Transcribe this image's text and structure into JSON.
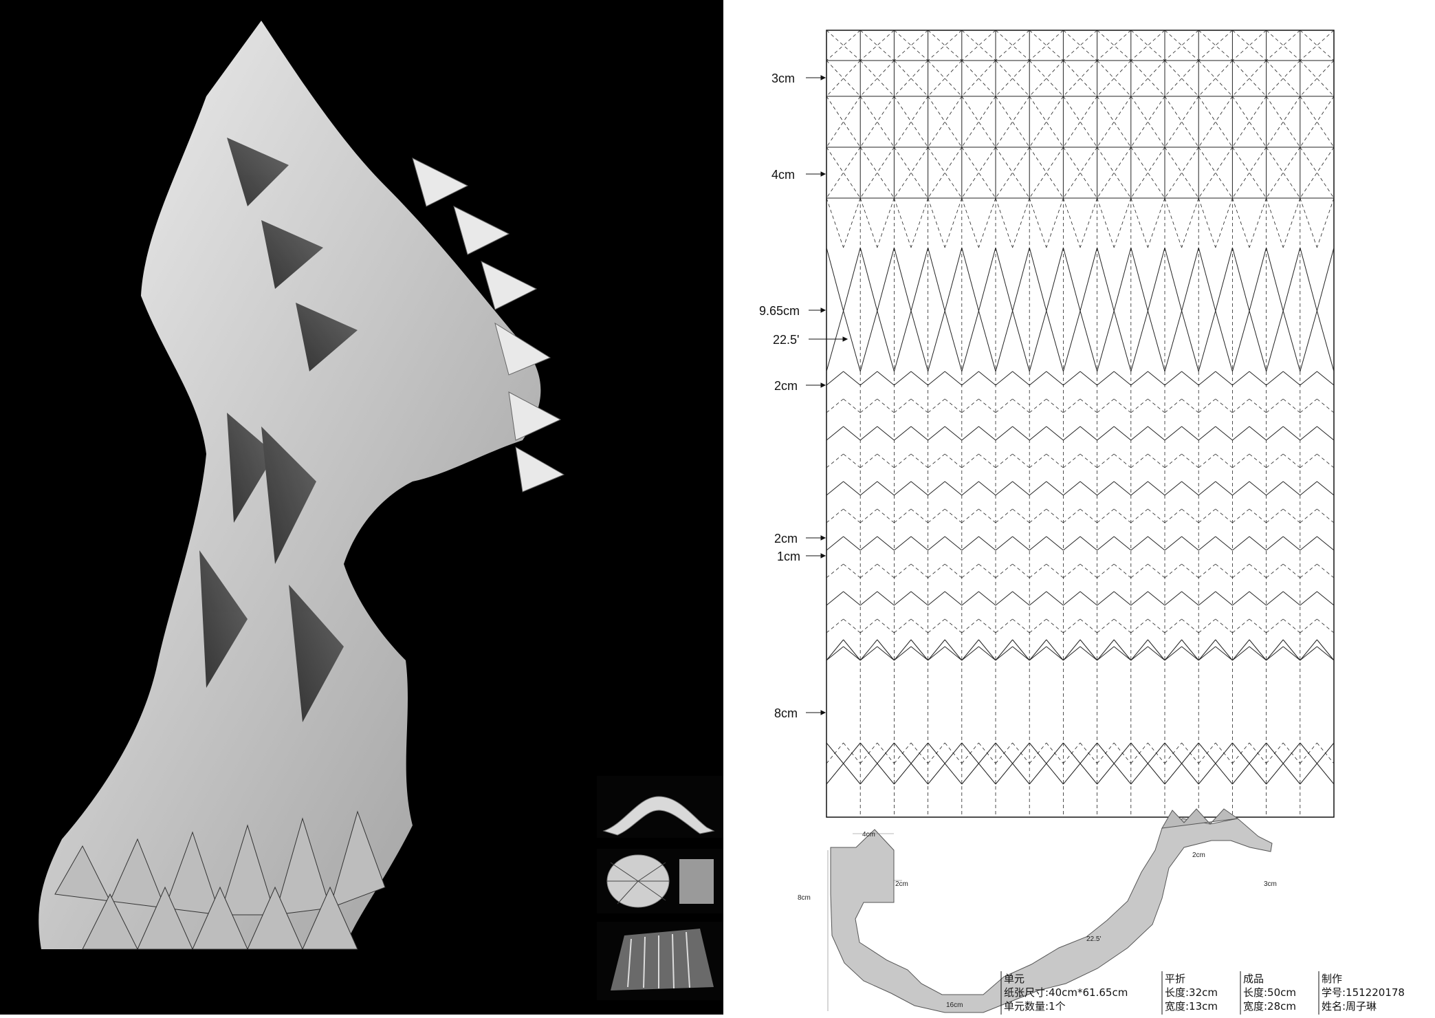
{
  "diagram": {
    "labels": [
      {
        "key": "3cm",
        "text": "3cm"
      },
      {
        "key": "4cm",
        "text": "4cm"
      },
      {
        "key": "965",
        "text": "9.65cm"
      },
      {
        "key": "ang",
        "text": "22.5'"
      },
      {
        "key": "2cm_a",
        "text": "2cm"
      },
      {
        "key": "2cm_b",
        "text": "2cm"
      },
      {
        "key": "1cm",
        "text": "1cm"
      },
      {
        "key": "8cm",
        "text": "8cm"
      }
    ],
    "profile_labels": {
      "top": "4cm",
      "side_a": "2cm",
      "left": "8cm",
      "angle": "22.5'",
      "bottom": "16cm",
      "right_a": "2cm",
      "right_b": "3cm"
    }
  },
  "info_table": {
    "unit": {
      "heading": "单元",
      "paper_size": "纸张尺寸:40cm*61.65cm",
      "count": "单元数量:1个"
    },
    "flat": {
      "heading": "平折",
      "length": "长度:32cm",
      "width": "宽度:13cm"
    },
    "finished": {
      "heading": "成品",
      "length": "长度:50cm",
      "width": "宽度:28cm"
    },
    "maker": {
      "heading": "制作",
      "student_id": "学号:151220178",
      "name": "姓名:周子琳"
    }
  }
}
